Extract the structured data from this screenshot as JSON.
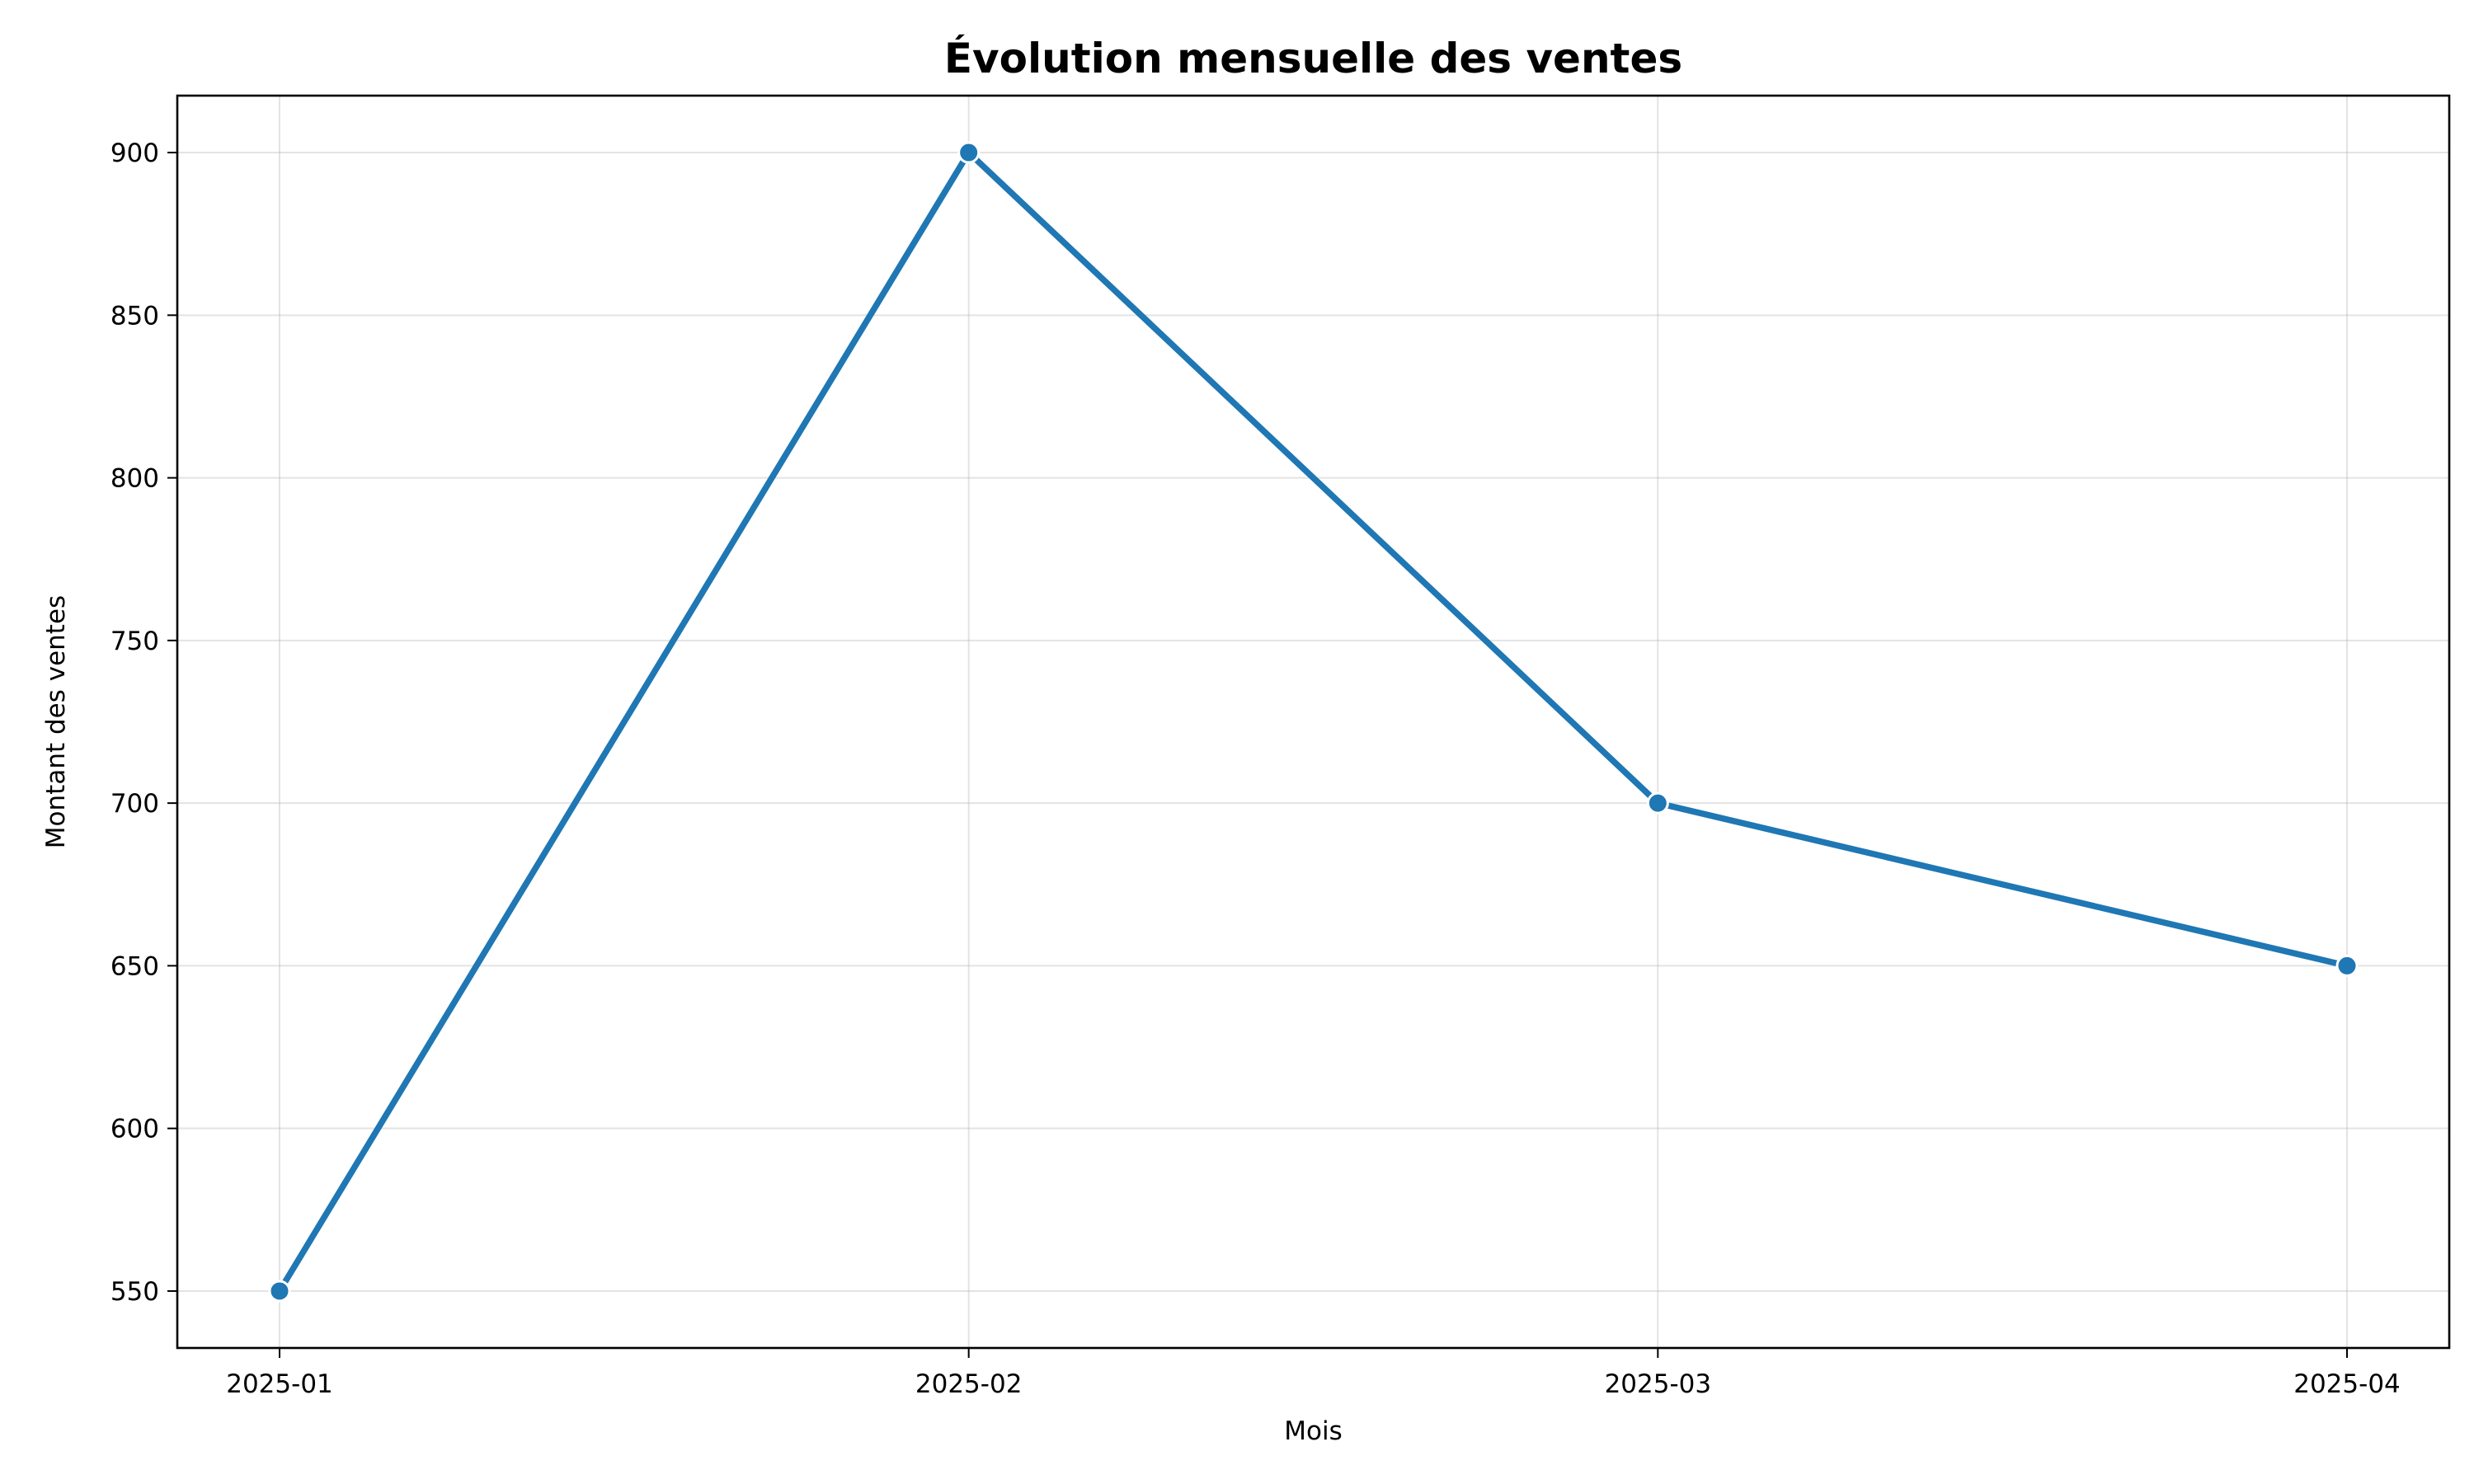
{
  "chart_data": {
    "type": "line",
    "title": "Évolution mensuelle des ventes",
    "xlabel": "Mois",
    "ylabel": "Montant des ventes",
    "categories": [
      "2025-01",
      "2025-02",
      "2025-03",
      "2025-04"
    ],
    "series": [
      {
        "values": [
          550,
          900,
          700,
          650
        ],
        "color": "#1f77b4",
        "marker": "circle"
      }
    ],
    "yticks": [
      550,
      600,
      650,
      700,
      750,
      800,
      850,
      900
    ],
    "ylim": [
      532.5,
      917.5
    ],
    "grid": true,
    "legend": "none"
  }
}
